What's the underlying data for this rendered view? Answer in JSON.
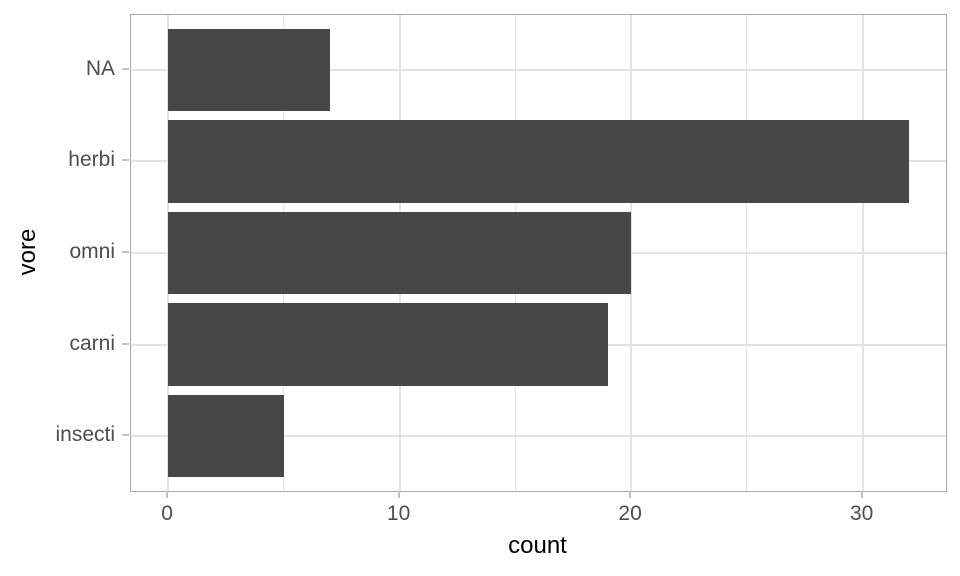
{
  "chart_data": {
    "type": "bar",
    "orientation": "horizontal",
    "title": "",
    "xlabel": "count",
    "ylabel": "vore",
    "categories": [
      "NA",
      "herbi",
      "omni",
      "carni",
      "insecti"
    ],
    "values": [
      7,
      32,
      20,
      19,
      5
    ],
    "x_major_ticks": [
      0,
      10,
      20,
      30
    ],
    "x_minor_ticks": [
      5,
      15,
      25
    ],
    "xlim": [
      -1.6,
      33.6
    ],
    "y_axis_units_total": 5.2,
    "bar_width_units": 0.9,
    "grid": "vertical major+minor, horizontal major at category centers",
    "legend": "none",
    "colors": {
      "bar_fill": "#474747",
      "grid_line": "#E3E3E3",
      "panel_border": "#A8A8A8",
      "tick_mark": "#C2C2C2",
      "tick_label": "#4D4D4D",
      "axis_title": "#000000",
      "background": "#FFFFFF"
    }
  }
}
